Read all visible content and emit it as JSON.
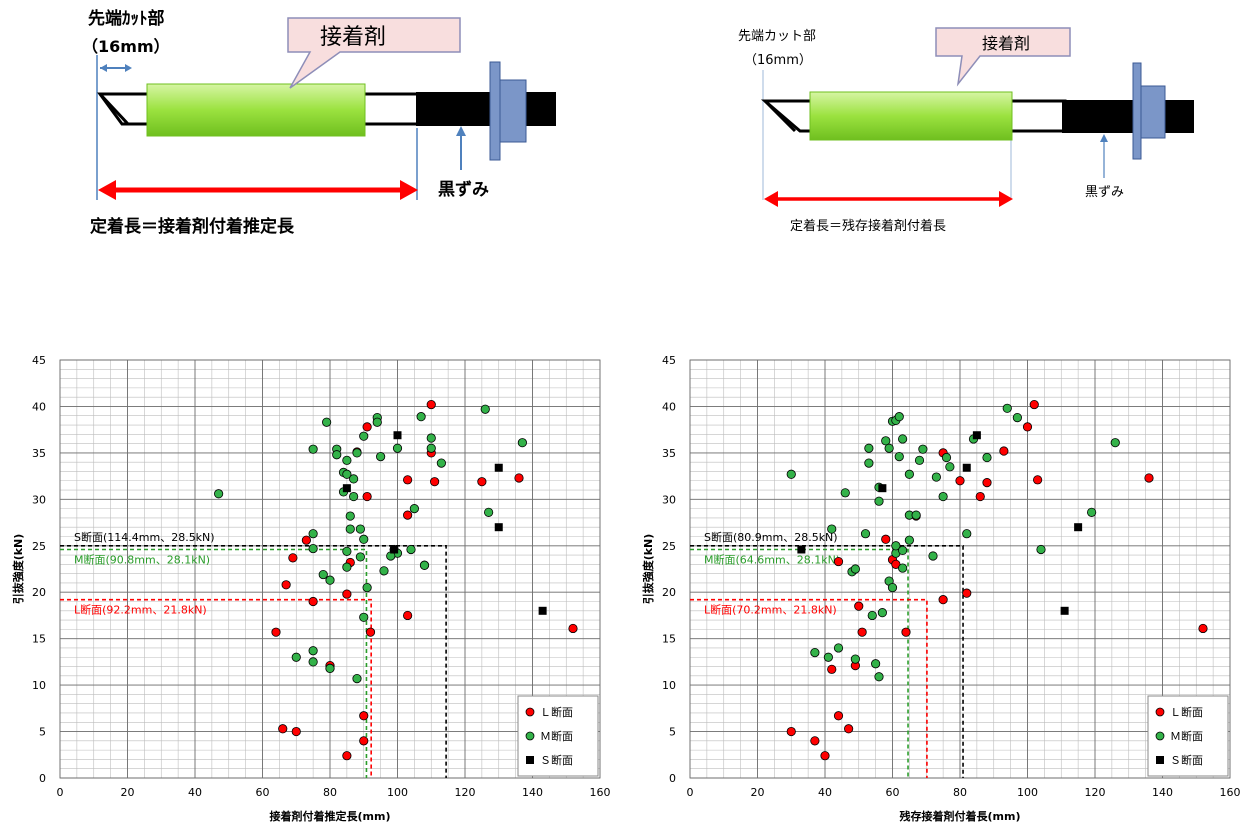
{
  "diagram_left": {
    "cut_label": "先端ｶｯﾄ部",
    "cut_length": "（16mm）",
    "adhesive_label": "接着剤",
    "black_label": "黒ずみ",
    "definition": "定着長＝接着剤付着推定長",
    "colors": {
      "adhesive": "#9be23f",
      "arrow": "#ff0000",
      "callout_fill": "#f8dede",
      "callout_stroke": "#8e8eb8",
      "washer": "#7b96c8",
      "black": "#000000",
      "dim": "#4f81bd"
    }
  },
  "diagram_right": {
    "cut_label": "先端カット部",
    "cut_length": "（16mm）",
    "adhesive_label": "接着剤",
    "black_label": "黒ずみ",
    "definition": "定着長＝残存接着剤付着長"
  },
  "chart_data": [
    {
      "type": "scatter",
      "xlabel": "接着剤付着推定長(mm)",
      "ylabel": "引抜強度(kN)",
      "xlim": [
        0,
        160
      ],
      "ylim": [
        0,
        45
      ],
      "xticks": [
        0,
        20,
        40,
        60,
        80,
        100,
        120,
        140,
        160
      ],
      "yticks": [
        0,
        5,
        10,
        15,
        20,
        25,
        30,
        35,
        40,
        45
      ],
      "grid": true,
      "legend_position": "bottom-right",
      "series": [
        {
          "name": "L断面",
          "legend": "Ｌ断面",
          "marker": "circle",
          "color": "#ff0000",
          "x": [
            110,
            91,
            88,
            110,
            111,
            103,
            91,
            103,
            73,
            69,
            67,
            85,
            86,
            92,
            103,
            152,
            64,
            75,
            80,
            80,
            90,
            90,
            70,
            66,
            85,
            125,
            136
          ],
          "y": [
            40.2,
            37.8,
            35.1,
            35,
            31.9,
            32.1,
            30.3,
            28.3,
            25.6,
            23.7,
            20.8,
            19.8,
            23.2,
            15.7,
            17.5,
            16.1,
            15.7,
            19,
            12.1,
            11.8,
            6.7,
            4,
            5,
            5.3,
            2.4,
            31.9,
            32.3
          ]
        },
        {
          "name": "M断面",
          "legend": "Ｍ断面",
          "marker": "circle",
          "color": "#33b249",
          "x": [
            47,
            75,
            79,
            82,
            82,
            84,
            85,
            85,
            86,
            86,
            87,
            87,
            88,
            89,
            90,
            90,
            94,
            94,
            95,
            99,
            100,
            100,
            104,
            105,
            107,
            108,
            110,
            110,
            113,
            126,
            127,
            137,
            75,
            75,
            78,
            80,
            85,
            91,
            85,
            84,
            89,
            96,
            98,
            108,
            70,
            75,
            75,
            80,
            88,
            90
          ],
          "y": [
            30.6,
            35.4,
            38.3,
            35.4,
            34.8,
            32.9,
            32.7,
            34.2,
            28.2,
            26.8,
            32.2,
            30.3,
            35,
            26.8,
            25.7,
            36.8,
            38.8,
            38.3,
            34.6,
            24.6,
            24.2,
            35.5,
            24.6,
            29,
            38.9,
            22.9,
            36.6,
            35.5,
            33.9,
            39.7,
            28.6,
            36.1,
            26.3,
            24.7,
            21.9,
            21.3,
            22.7,
            20.5,
            24.4,
            30.8,
            23.8,
            22.3,
            23.9,
            22.9,
            13,
            13.7,
            12.5,
            11.8,
            10.7,
            17.3
          ]
        },
        {
          "name": "S断面",
          "legend": "Ｓ断面",
          "marker": "square",
          "color": "#000000",
          "x": [
            100,
            85,
            99,
            130,
            130,
            143
          ],
          "y": [
            36.9,
            31.2,
            24.6,
            33.4,
            27,
            18
          ]
        }
      ],
      "reference_lines": [
        {
          "label": "S断面(114.4mm、28.5kN)",
          "x": 114.4,
          "y": 25,
          "color": "#000000"
        },
        {
          "label": "M断面(90.8mm、28.1kN)",
          "x": 90.8,
          "y": 24.6,
          "color": "#2a9d2a"
        },
        {
          "label": "L断面(92.2mm、21.8kN)",
          "x": 92.2,
          "y": 19.2,
          "color": "#ff0000"
        }
      ]
    },
    {
      "type": "scatter",
      "xlabel": "残存接着剤付着長(mm)",
      "ylabel": "引抜強度(kN)",
      "xlim": [
        0,
        160
      ],
      "ylim": [
        0,
        45
      ],
      "xticks": [
        0,
        20,
        40,
        60,
        80,
        100,
        120,
        140,
        160
      ],
      "yticks": [
        0,
        5,
        10,
        15,
        20,
        25,
        30,
        35,
        40,
        45
      ],
      "grid": true,
      "legend_position": "bottom-right",
      "series": [
        {
          "name": "L断面",
          "legend": "Ｌ断面",
          "marker": "circle",
          "color": "#ff0000",
          "x": [
            102,
            100,
            93,
            80,
            75,
            86,
            88,
            67,
            60,
            58,
            44,
            75,
            82,
            61,
            64,
            103,
            136,
            152,
            50,
            49,
            44,
            42,
            30,
            37,
            40,
            51,
            47
          ],
          "y": [
            40.2,
            37.8,
            35.2,
            32,
            35,
            30.3,
            31.8,
            28.2,
            23.5,
            25.7,
            23.3,
            19.2,
            19.9,
            23,
            15.7,
            32.1,
            32.3,
            16.1,
            18.5,
            12.1,
            6.7,
            11.7,
            5,
            4,
            2.4,
            15.7,
            5.3
          ]
        },
        {
          "name": "M断面",
          "legend": "Ｍ断面",
          "marker": "circle",
          "color": "#33b249",
          "x": [
            30,
            42,
            46,
            52,
            53,
            56,
            56,
            58,
            59,
            60,
            61,
            62,
            62,
            63,
            65,
            65,
            67,
            68,
            69,
            72,
            73,
            75,
            76,
            82,
            84,
            88,
            94,
            97,
            104,
            119,
            126,
            48,
            49,
            53,
            57,
            59,
            60,
            61,
            61,
            63,
            54,
            56,
            37,
            41,
            44,
            49,
            55,
            63,
            65,
            77
          ],
          "y": [
            32.7,
            26.8,
            30.7,
            26.3,
            35.5,
            31.3,
            29.8,
            36.3,
            35.5,
            38.4,
            38.5,
            38.9,
            34.6,
            36.5,
            32.7,
            28.3,
            28.3,
            34.2,
            35.4,
            23.9,
            32.4,
            30.3,
            34.5,
            26.3,
            36.5,
            34.5,
            39.8,
            38.8,
            24.6,
            28.6,
            36.1,
            22.2,
            22.5,
            33.9,
            17.8,
            21.2,
            20.5,
            24.2,
            25,
            24.5,
            17.5,
            10.9,
            13.5,
            13,
            14,
            12.8,
            12.3,
            22.6,
            25.6,
            33.5
          ]
        },
        {
          "name": "S断面",
          "legend": "Ｓ断面",
          "marker": "square",
          "color": "#000000",
          "x": [
            85,
            57,
            33,
            82,
            115,
            111
          ],
          "y": [
            36.9,
            31.2,
            24.6,
            33.4,
            27,
            18
          ]
        }
      ],
      "reference_lines": [
        {
          "label": "S断面(80.9mm、28.5kN)",
          "x": 80.9,
          "y": 25,
          "color": "#000000"
        },
        {
          "label": "M断面(64.6mm、28.1kN)",
          "x": 64.6,
          "y": 24.6,
          "color": "#2a9d2a"
        },
        {
          "label": "L断面(70.2mm、21.8kN)",
          "x": 70.2,
          "y": 19.2,
          "color": "#ff0000"
        }
      ]
    }
  ]
}
